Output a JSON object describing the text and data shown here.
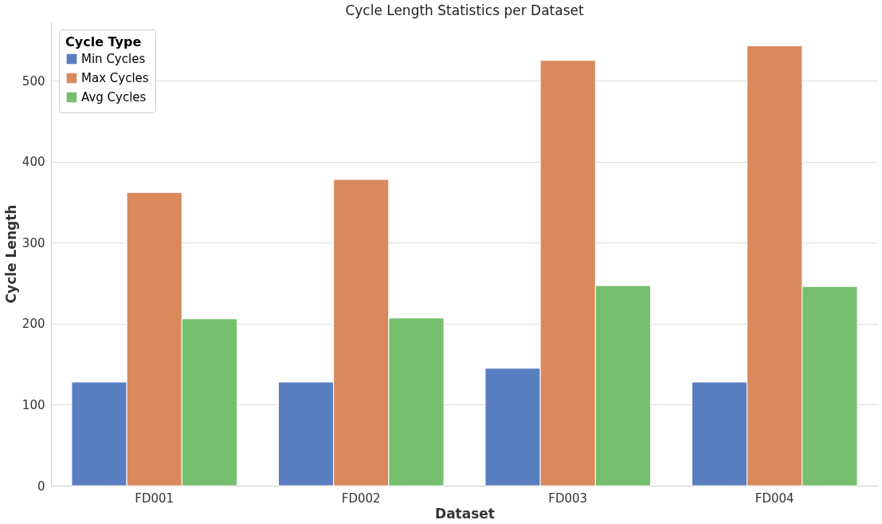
{
  "chart_data": {
    "type": "bar",
    "title": "Cycle Length Statistics per Dataset",
    "xlabel": "Dataset",
    "ylabel": "Cycle Length",
    "legend_title": "Cycle Type",
    "categories": [
      "FD001",
      "FD002",
      "FD003",
      "FD004"
    ],
    "series": [
      {
        "name": "Min Cycles",
        "color": "#5a7ec2",
        "values": [
          128,
          128,
          145,
          128
        ]
      },
      {
        "name": "Max Cycles",
        "color": "#d9895c",
        "values": [
          362,
          378,
          525,
          543
        ]
      },
      {
        "name": "Avg Cycles",
        "color": "#75bf6e",
        "values": [
          206,
          207,
          247,
          246
        ]
      }
    ],
    "ylim": [
      0,
      573
    ],
    "yticks": [
      0,
      100,
      200,
      300,
      400,
      500
    ],
    "grid": "y",
    "legend": "top left"
  }
}
